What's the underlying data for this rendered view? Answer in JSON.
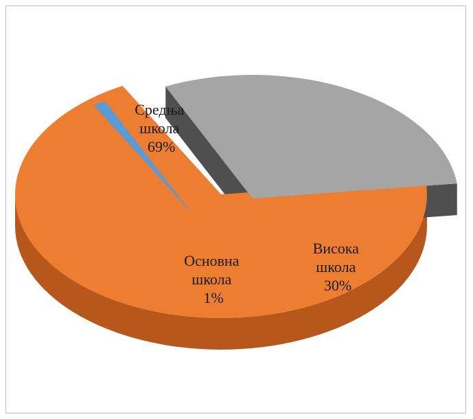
{
  "chart_data": {
    "type": "pie",
    "style": "3d-exploded",
    "title": "",
    "slices": [
      {
        "label_lines": [
          "Средња",
          "школа",
          "69%"
        ],
        "label": "Средња школа",
        "value": 69,
        "color": "#ed7d31",
        "side_color": "#b8571b",
        "cut_color": "#6b3410"
      },
      {
        "label_lines": [
          "Основна",
          "школа",
          "1%"
        ],
        "label": "Основна школа",
        "value": 1,
        "color": "#5b9bd5",
        "side_color": "#2e6aa6",
        "cut_color": "#2e6aa6"
      },
      {
        "label_lines": [
          "Висока",
          "школа",
          "30%"
        ],
        "label": "Висока школа",
        "value": 30,
        "color": "#a5a5a5",
        "side_color": "#4f4f4f",
        "cut_color": "#4f4f4f"
      }
    ]
  }
}
